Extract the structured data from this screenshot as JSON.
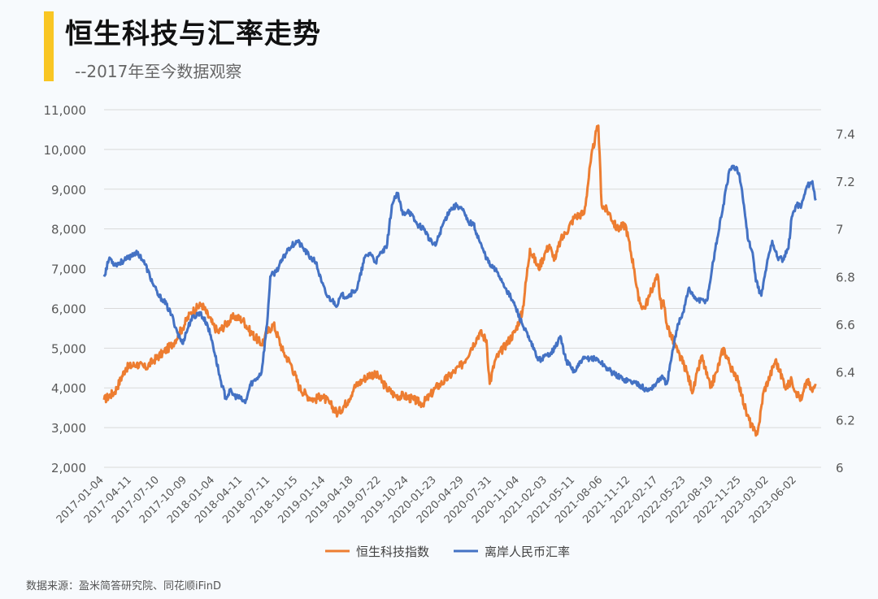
{
  "header": {
    "title": "恒生科技与汇率走势",
    "subtitle": "--2017年至今数据观察"
  },
  "source": "数据来源：盈米简答研究院、同花顺iFinD",
  "colors": {
    "accent": "#f9c623",
    "hstech": "#ed7d31",
    "cnh": "#4472c4",
    "grid": "#d9d9d9",
    "axis_text": "#595959"
  },
  "chart_data": {
    "type": "line",
    "title": "恒生科技与汇率走势",
    "x_tick_labels": [
      "2017-01-04",
      "2017-04-11",
      "2017-07-10",
      "2017-10-09",
      "2018-01-04",
      "2018-04-11",
      "2018-07-11",
      "2018-10-15",
      "2019-01-14",
      "2019-04-18",
      "2019-07-22",
      "2019-10-24",
      "2020-01-23",
      "2020-04-29",
      "2020-07-31",
      "2020-11-04",
      "2021-02-03",
      "2021-05-11",
      "2021-08-06",
      "2021-11-12",
      "2022-02-17",
      "2022-05-23",
      "2022-08-19",
      "2022-11-25",
      "2023-03-02",
      "2023-06-02"
    ],
    "y_left": {
      "range": [
        2000,
        11000
      ],
      "ticks": [
        2000,
        3000,
        4000,
        5000,
        6000,
        7000,
        8000,
        9000,
        10000,
        11000
      ],
      "tick_labels": [
        "2,000",
        "3,000",
        "4,000",
        "5,000",
        "6,000",
        "7,000",
        "8,000",
        "9,000",
        "10,000",
        "11,000"
      ]
    },
    "y_right": {
      "range": [
        6.0,
        7.5
      ],
      "ticks": [
        6.0,
        6.2,
        6.4,
        6.6,
        6.8,
        7.0,
        7.2,
        7.4
      ],
      "tick_labels": [
        "6",
        "6.2",
        "6.4",
        "6.6",
        "6.8",
        "7",
        "7.2",
        "7.4"
      ]
    },
    "grid": true,
    "legend_position": "bottom",
    "series": [
      {
        "name": "恒生科技指数",
        "axis": "left",
        "x": [
          2017.0,
          2017.1,
          2017.2,
          2017.3,
          2017.38,
          2017.46,
          2017.55,
          2017.63,
          2017.72,
          2017.8,
          2017.9,
          2018.0,
          2018.05,
          2018.12,
          2018.2,
          2018.28,
          2018.35,
          2018.45,
          2018.5,
          2018.56,
          2018.65,
          2018.72,
          2018.8,
          2018.87,
          2018.94,
          2019.0,
          2019.08,
          2019.15,
          2019.25,
          2019.3,
          2019.38,
          2019.45,
          2019.52,
          2019.6,
          2019.68,
          2019.76,
          2019.85,
          2019.93,
          2020.0,
          2020.05,
          2020.1,
          2020.18,
          2020.22,
          2020.3,
          2020.38,
          2020.46,
          2020.52,
          2020.55,
          2020.6,
          2020.7,
          2020.78,
          2020.85,
          2020.92,
          2021.0,
          2021.06,
          2021.1,
          2021.13,
          2021.16,
          2021.2,
          2021.25,
          2021.33,
          2021.42,
          2021.48,
          2021.52,
          2021.55,
          2021.58,
          2021.65,
          2021.72,
          2021.8,
          2021.88,
          2021.92,
          2021.97,
          2022.02,
          2022.07,
          2022.1,
          2022.13,
          2022.15,
          2022.18,
          2022.22,
          2022.28,
          2022.35,
          2022.42,
          2022.5,
          2022.58,
          2022.64,
          2022.7,
          2022.76,
          2022.8,
          2022.83,
          2022.87,
          2022.92,
          2023.0,
          2023.03,
          2023.07,
          2023.13,
          2023.18,
          2023.22,
          2023.28,
          2023.33,
          2023.37,
          2023.42,
          2023.47,
          2023.52,
          2023.55
        ],
        "values": [
          3700,
          3900,
          4500,
          4600,
          4500,
          4700,
          4900,
          5100,
          5500,
          5900,
          6100,
          5600,
          5400,
          5600,
          5800,
          5700,
          5400,
          5100,
          5400,
          5600,
          4900,
          4600,
          4000,
          3800,
          3700,
          3800,
          3600,
          3350,
          3700,
          4000,
          4200,
          4350,
          4300,
          4000,
          3800,
          3800,
          3700,
          3600,
          3800,
          4000,
          4100,
          4300,
          4400,
          4600,
          5000,
          5400,
          5200,
          4100,
          4700,
          5100,
          5400,
          5900,
          7500,
          7000,
          7400,
          7600,
          7300,
          7300,
          7700,
          7900,
          8300,
          8400,
          9700,
          10300,
          10600,
          8600,
          8400,
          8000,
          8100,
          7000,
          6200,
          6000,
          6300,
          6700,
          6800,
          6000,
          6200,
          5600,
          5300,
          4900,
          4500,
          3900,
          4800,
          4000,
          4400,
          5000,
          4600,
          4300,
          4300,
          3800,
          3300,
          2800,
          3100,
          3900,
          4300,
          4700,
          4400,
          4000,
          4200,
          3900,
          3700,
          4200,
          3900,
          4100
        ]
      },
      {
        "name": "离岸人民币汇率",
        "axis": "right",
        "x": [
          2017.0,
          2017.05,
          2017.1,
          2017.2,
          2017.28,
          2017.33,
          2017.38,
          2017.45,
          2017.5,
          2017.55,
          2017.62,
          2017.68,
          2017.72,
          2017.8,
          2017.88,
          2017.95,
          2018.0,
          2018.07,
          2018.12,
          2018.16,
          2018.2,
          2018.25,
          2018.3,
          2018.35,
          2018.4,
          2018.45,
          2018.5,
          2018.53,
          2018.58,
          2018.63,
          2018.7,
          2018.78,
          2018.83,
          2018.9,
          2018.95,
          2019.0,
          2019.05,
          2019.1,
          2019.15,
          2019.18,
          2019.25,
          2019.33,
          2019.4,
          2019.45,
          2019.5,
          2019.55,
          2019.6,
          2019.65,
          2019.7,
          2019.75,
          2019.8,
          2019.88,
          2019.95,
          2020.0,
          2020.05,
          2020.12,
          2020.18,
          2020.25,
          2020.3,
          2020.35,
          2020.4,
          2020.48,
          2020.55,
          2020.62,
          2020.7,
          2020.78,
          2020.85,
          2020.92,
          2021.0,
          2021.08,
          2021.15,
          2021.2,
          2021.25,
          2021.33,
          2021.4,
          2021.48,
          2021.55,
          2021.62,
          2021.7,
          2021.78,
          2021.85,
          2021.92,
          2022.0,
          2022.08,
          2022.13,
          2022.18,
          2022.22,
          2022.28,
          2022.33,
          2022.38,
          2022.42,
          2022.47,
          2022.55,
          2022.62,
          2022.7,
          2022.76,
          2022.82,
          2022.85,
          2022.89,
          2022.93,
          2022.97,
          2023.0,
          2023.05,
          2023.1,
          2023.15,
          2023.2,
          2023.25,
          2023.3,
          2023.33,
          2023.37,
          2023.42,
          2023.47,
          2023.52,
          2023.55
        ],
        "values": [
          6.8,
          6.88,
          6.85,
          6.87,
          6.9,
          6.89,
          6.85,
          6.77,
          6.72,
          6.7,
          6.64,
          6.56,
          6.52,
          6.62,
          6.65,
          6.6,
          6.52,
          6.37,
          6.29,
          6.32,
          6.3,
          6.29,
          6.27,
          6.35,
          6.37,
          6.4,
          6.6,
          6.8,
          6.82,
          6.86,
          6.92,
          6.95,
          6.92,
          6.88,
          6.86,
          6.78,
          6.72,
          6.7,
          6.68,
          6.72,
          6.72,
          6.75,
          6.88,
          6.9,
          6.86,
          6.9,
          6.92,
          7.1,
          7.15,
          7.06,
          7.08,
          7.02,
          7.0,
          6.95,
          6.93,
          7.02,
          7.08,
          7.1,
          7.08,
          7.03,
          7.02,
          6.92,
          6.85,
          6.82,
          6.75,
          6.68,
          6.6,
          6.53,
          6.45,
          6.47,
          6.5,
          6.55,
          6.45,
          6.4,
          6.45,
          6.46,
          6.45,
          6.42,
          6.39,
          6.37,
          6.36,
          6.35,
          6.32,
          6.35,
          6.38,
          6.35,
          6.45,
          6.6,
          6.65,
          6.75,
          6.72,
          6.7,
          6.7,
          6.9,
          7.1,
          7.25,
          7.26,
          7.22,
          7.1,
          6.95,
          6.9,
          6.78,
          6.72,
          6.85,
          6.95,
          6.88,
          6.87,
          6.92,
          7.05,
          7.1,
          7.1,
          7.18,
          7.2,
          7.12
        ]
      }
    ]
  }
}
